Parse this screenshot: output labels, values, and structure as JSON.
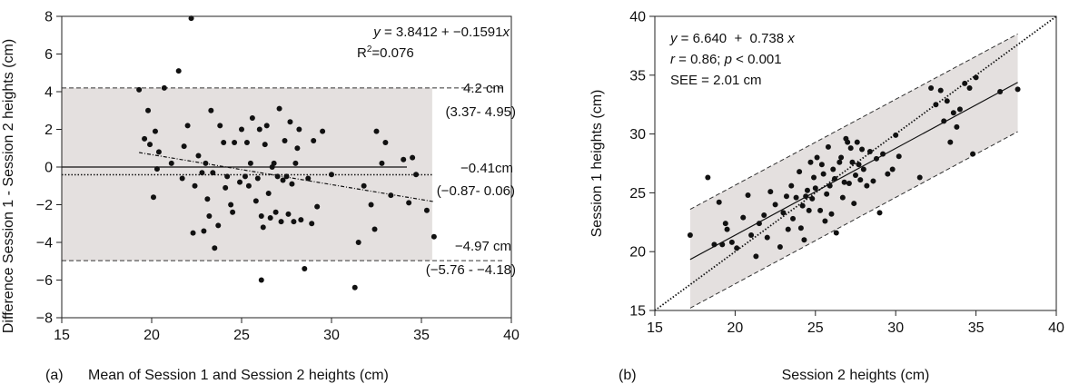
{
  "chart_data": [
    {
      "panel_label": "(a)",
      "type": "scatter",
      "xlabel": "Mean of Session 1 and Session 2 heights (cm)",
      "ylabel": "Difference Session 1 - Session 2 heights (cm)",
      "xlim": [
        15,
        40
      ],
      "ylim": [
        -8,
        8
      ],
      "xticks": [
        15,
        20,
        25,
        30,
        35,
        40
      ],
      "yticks": [
        -8,
        -6,
        -4,
        -2,
        0,
        2,
        4,
        6,
        8
      ],
      "equation": {
        "prefix": "y",
        "text": " = 3.8412 + −0.1591",
        "suffix": "x"
      },
      "r2": {
        "prefix": "R",
        "sup": "2",
        "text": "=0.076"
      },
      "regression": {
        "intercept": 3.8412,
        "slope": -0.1591,
        "x_range": [
          19.3,
          35.7
        ]
      },
      "limits": {
        "upper": {
          "value": 4.2,
          "label": "4.2 cm",
          "ci": "(3.37- 4.95)"
        },
        "mean": {
          "value": -0.41,
          "label": "−0.41cm",
          "ci": "(−0.87- 0.06)"
        },
        "lower": {
          "value": -4.97,
          "label": "−4.97 cm",
          "ci": "(−5.76 - −4.18)"
        }
      },
      "band": {
        "x_range": [
          15,
          35.6
        ],
        "y_range": [
          -4.97,
          4.2
        ]
      },
      "x": [
        19.3,
        19.6,
        19.8,
        19.9,
        20.1,
        20.2,
        20.4,
        20.7,
        21.1,
        21.5,
        21.7,
        21.8,
        22.0,
        22.2,
        22.3,
        22.6,
        22.8,
        22.9,
        23.0,
        23.1,
        23.2,
        23.3,
        23.4,
        23.5,
        23.7,
        23.8,
        24.0,
        24.1,
        24.2,
        24.4,
        24.5,
        24.6,
        24.9,
        25.0,
        25.2,
        25.3,
        25.4,
        25.5,
        25.6,
        25.8,
        25.9,
        26.0,
        26.1,
        26.1,
        26.2,
        26.3,
        26.4,
        26.5,
        26.6,
        26.7,
        26.8,
        26.9,
        27.0,
        27.1,
        27.2,
        27.3,
        27.4,
        27.5,
        27.6,
        27.7,
        27.8,
        27.9,
        28.0,
        28.1,
        28.2,
        28.3,
        28.5,
        28.7,
        28.9,
        29.0,
        29.2,
        29.5,
        30.0,
        31.3,
        31.5,
        31.8,
        32.2,
        32.4,
        32.5,
        32.8,
        33.0,
        33.3,
        34.0,
        34.3,
        34.5,
        34.7,
        35.3,
        35.7,
        20.3,
        22.4
      ],
      "y": [
        4.1,
        1.5,
        3.0,
        1.2,
        -1.6,
        1.9,
        0.8,
        4.2,
        0.2,
        5.1,
        -0.6,
        1.1,
        2.2,
        7.9,
        -3.5,
        0.6,
        -0.3,
        -3.4,
        0.2,
        -1.7,
        -2.6,
        3.0,
        -0.3,
        -4.3,
        -3.1,
        2.2,
        1.3,
        -1.1,
        -0.5,
        -2.0,
        -2.4,
        1.3,
        -0.8,
        2.0,
        -0.5,
        1.3,
        -1.0,
        0.2,
        2.6,
        -1.8,
        -0.6,
        2.0,
        -2.6,
        -6.0,
        -3.2,
        1.2,
        2.2,
        -1.4,
        -2.7,
        0.0,
        0.2,
        -2.4,
        -0.5,
        3.1,
        -2.9,
        -0.7,
        1.4,
        -0.5,
        -2.5,
        2.4,
        -0.9,
        -2.9,
        0.2,
        1.0,
        2.0,
        -2.8,
        -5.4,
        -0.6,
        -3.0,
        1.4,
        -2.1,
        1.9,
        -0.4,
        -6.4,
        -4.0,
        -1.0,
        -2.0,
        -3.3,
        1.9,
        0.2,
        1.3,
        -1.5,
        0.4,
        -1.9,
        0.5,
        -0.4,
        -2.3,
        -3.7,
        -0.1,
        -1.0
      ]
    },
    {
      "panel_label": "(b)",
      "type": "scatter",
      "xlabel": "Session 2 heights (cm)",
      "ylabel": "Session 1 heights (cm)",
      "xlim": [
        15,
        40
      ],
      "ylim": [
        15,
        40
      ],
      "xticks": [
        15,
        20,
        25,
        30,
        35,
        40
      ],
      "yticks": [
        15,
        20,
        25,
        30,
        35,
        40
      ],
      "equation": {
        "prefix": "y",
        "text": " = 6.640  +  0.738 ",
        "suffix": "x"
      },
      "stats": {
        "r_prefix": "r",
        "r_text": " = 0.86; ",
        "p_prefix": "p",
        "p_text": " < 0.001"
      },
      "see": "SEE = 2.01 cm",
      "regression": {
        "intercept": 6.64,
        "slope": 0.738,
        "x_range": [
          17.2,
          37.6
        ]
      },
      "see_value": 2.01,
      "identity_line": {
        "x_range": [
          15,
          40
        ]
      },
      "band": {
        "x_range": [
          17.2,
          37.6
        ],
        "upper": [
          23.6,
          38.5
        ],
        "lower": [
          15.2,
          30.2
        ]
      },
      "x": [
        17.2,
        18.3,
        18.7,
        19.0,
        19.2,
        19.4,
        19.5,
        19.8,
        20.1,
        20.5,
        20.8,
        21.0,
        21.3,
        21.5,
        21.8,
        22.0,
        22.2,
        22.5,
        22.8,
        23.0,
        23.2,
        23.3,
        23.5,
        23.6,
        23.8,
        24.0,
        24.1,
        24.2,
        24.3,
        24.4,
        24.5,
        24.6,
        24.7,
        24.8,
        24.9,
        25.0,
        25.1,
        25.3,
        25.4,
        25.5,
        25.6,
        25.7,
        25.8,
        25.9,
        26.0,
        26.1,
        26.2,
        26.3,
        26.5,
        26.6,
        26.7,
        26.8,
        26.9,
        27.0,
        27.1,
        27.2,
        27.3,
        27.4,
        27.5,
        27.6,
        27.7,
        27.8,
        27.9,
        28.0,
        28.2,
        28.4,
        28.6,
        28.8,
        29.0,
        29.2,
        29.5,
        29.8,
        30.0,
        30.2,
        31.5,
        32.2,
        32.5,
        32.8,
        33.0,
        33.2,
        33.4,
        33.6,
        33.8,
        34.0,
        34.3,
        34.6,
        34.8,
        35.0,
        36.5,
        37.6
      ],
      "y": [
        21.4,
        26.3,
        20.6,
        24.2,
        20.6,
        22.4,
        21.9,
        20.8,
        20.3,
        22.9,
        24.8,
        21.4,
        19.6,
        22.4,
        23.1,
        21.2,
        25.1,
        24.0,
        20.4,
        23.3,
        24.7,
        21.9,
        25.6,
        22.8,
        24.6,
        26.8,
        22.0,
        23.9,
        21.0,
        24.7,
        25.2,
        23.5,
        27.6,
        24.5,
        26.3,
        25.4,
        28.0,
        23.5,
        27.4,
        26.6,
        22.6,
        24.9,
        28.9,
        25.6,
        23.2,
        27.0,
        26.2,
        21.6,
        27.6,
        28.0,
        24.6,
        25.9,
        29.6,
        29.3,
        25.8,
        28.8,
        27.6,
        24.1,
        26.5,
        29.3,
        27.4,
        26.1,
        28.7,
        27.0,
        25.6,
        28.5,
        26.0,
        27.9,
        23.3,
        28.3,
        26.6,
        27.0,
        29.9,
        28.1,
        26.3,
        33.9,
        32.5,
        33.7,
        31.1,
        32.8,
        29.3,
        31.8,
        30.6,
        32.1,
        34.3,
        33.9,
        28.3,
        34.8,
        33.6,
        33.8
      ]
    }
  ]
}
